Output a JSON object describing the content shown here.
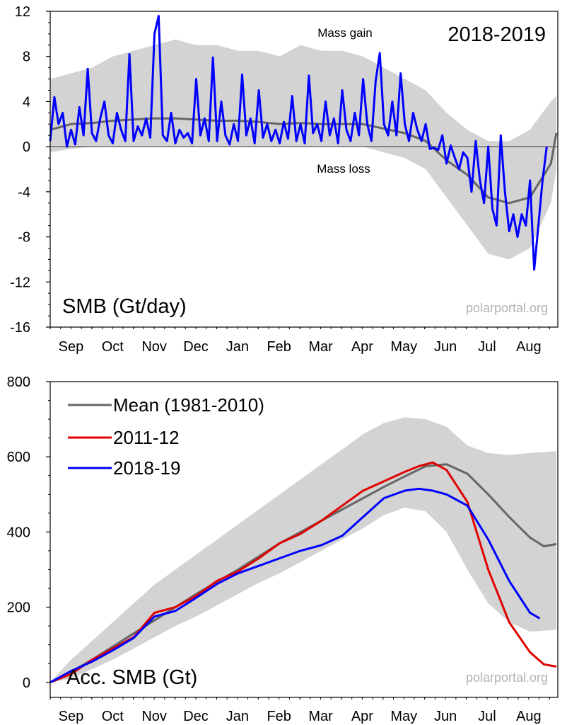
{
  "colors": {
    "mean": "#666666",
    "band": "#d3d3d3",
    "season": "#0000ff",
    "year2012": "#e00000"
  },
  "months": [
    "Sep",
    "Oct",
    "Nov",
    "Dec",
    "Jan",
    "Feb",
    "Mar",
    "Apr",
    "May",
    "Jun",
    "Jul",
    "Aug"
  ],
  "chart_data": [
    {
      "type": "line",
      "title": "2018-2019",
      "ylabel": "SMB (Gt/day)",
      "watermark": "polarportal.org",
      "annotations": {
        "gain": "Mass gain",
        "loss": "Mass loss"
      },
      "ylim": [
        -16,
        12
      ],
      "yticks": [
        12,
        8,
        4,
        0,
        -4,
        -8,
        -12,
        -16
      ],
      "xlim": [
        0,
        365
      ],
      "zero_line": true,
      "grid": false,
      "series": [
        {
          "name": "Mean (1981-2010)",
          "x": [
            0,
            15,
            30,
            45,
            60,
            75,
            90,
            105,
            120,
            135,
            150,
            165,
            180,
            195,
            210,
            225,
            240,
            255,
            270,
            285,
            300,
            315,
            330,
            345,
            360,
            364
          ],
          "y": [
            1.5,
            2.0,
            2.1,
            2.3,
            2.4,
            2.5,
            2.5,
            2.4,
            2.3,
            2.3,
            2.2,
            2.0,
            2.1,
            2.0,
            2.0,
            2.0,
            1.6,
            1.2,
            0.5,
            -1.2,
            -2.5,
            -4.5,
            -5.0,
            -4.5,
            -1.5,
            1.2
          ]
        },
        {
          "name": "2018-19",
          "x": [
            0,
            3,
            6,
            9,
            12,
            15,
            18,
            21,
            24,
            27,
            30,
            33,
            36,
            39,
            42,
            45,
            48,
            51,
            54,
            57,
            60,
            63,
            66,
            69,
            72,
            75,
            78,
            81,
            84,
            87,
            90,
            93,
            96,
            99,
            102,
            105,
            108,
            111,
            114,
            117,
            120,
            123,
            126,
            129,
            132,
            135,
            138,
            141,
            144,
            147,
            150,
            153,
            156,
            159,
            162,
            165,
            168,
            171,
            174,
            177,
            180,
            183,
            186,
            189,
            192,
            195,
            198,
            201,
            204,
            207,
            210,
            213,
            216,
            219,
            222,
            225,
            228,
            231,
            234,
            237,
            240,
            243,
            246,
            249,
            252,
            255,
            258,
            261,
            264,
            267,
            270,
            273,
            276,
            279,
            282,
            285,
            288,
            291,
            294,
            297,
            300,
            303,
            306,
            309,
            312,
            315,
            318,
            321,
            324,
            327,
            330,
            333,
            336,
            339,
            342,
            345,
            348,
            351,
            354,
            357
          ],
          "y": [
            0.5,
            4.4,
            2.0,
            3.0,
            0.0,
            1.5,
            0.2,
            3.5,
            1.0,
            6.9,
            1.2,
            0.5,
            2.5,
            4.0,
            1.0,
            0.3,
            3.0,
            1.5,
            0.5,
            8.2,
            0.5,
            1.8,
            1.0,
            2.5,
            0.8,
            10.0,
            11.6,
            1.0,
            0.5,
            3.0,
            0.3,
            1.5,
            0.8,
            1.2,
            0.3,
            6.0,
            1.0,
            2.5,
            0.5,
            7.9,
            0.5,
            4.0,
            1.0,
            0.2,
            2.0,
            0.5,
            6.4,
            1.0,
            2.5,
            0.3,
            5.0,
            0.8,
            2.0,
            0.5,
            1.5,
            0.3,
            2.2,
            0.7,
            4.5,
            0.5,
            2.0,
            0.3,
            6.3,
            1.2,
            2.0,
            0.5,
            4.0,
            1.0,
            2.5,
            0.3,
            5.0,
            1.5,
            0.5,
            3.0,
            1.0,
            6.0,
            2.0,
            0.5,
            5.8,
            8.3,
            2.0,
            1.0,
            4.0,
            1.0,
            6.5,
            2.0,
            0.5,
            3.0,
            1.5,
            0.5,
            2.0,
            -0.2,
            -0.1,
            -0.3,
            1.0,
            -1.5,
            0.1,
            -1.0,
            -2.0,
            -0.5,
            -1.0,
            -4.0,
            0.5,
            -3.0,
            -5.0,
            0.0,
            -5.5,
            -7.0,
            1.0,
            -4.0,
            -7.5,
            -6.0,
            -8.0,
            -6.0,
            -7.0,
            -3.0,
            -10.9,
            -7.0,
            -3.0,
            0.0
          ]
        }
      ],
      "band": {
        "x": [
          0,
          15,
          30,
          45,
          60,
          75,
          90,
          105,
          120,
          135,
          150,
          165,
          180,
          195,
          210,
          225,
          240,
          255,
          270,
          285,
          300,
          315,
          330,
          345,
          360,
          364
        ],
        "lower": [
          -0.5,
          -0.2,
          0.0,
          0.0,
          0.0,
          0.0,
          0.0,
          0.0,
          0.0,
          0.0,
          0.0,
          0.0,
          0.0,
          0.0,
          0.0,
          0.0,
          -0.5,
          -1.0,
          -2.0,
          -4.5,
          -7.0,
          -9.5,
          -10.0,
          -9.0,
          -5.0,
          -2.0
        ],
        "upper": [
          6.0,
          6.5,
          7.0,
          8.0,
          8.5,
          9.0,
          9.5,
          9.0,
          9.0,
          8.5,
          8.5,
          8.0,
          9.0,
          8.5,
          8.5,
          8.0,
          7.0,
          6.0,
          5.0,
          3.0,
          1.5,
          0.5,
          0.5,
          1.5,
          4.0,
          4.5
        ]
      }
    },
    {
      "type": "line",
      "ylabel": "Acc. SMB (Gt)",
      "watermark": "polarportal.org",
      "ylim": [
        -40,
        800
      ],
      "yticks": [
        800,
        600,
        400,
        200,
        0
      ],
      "xlim": [
        0,
        365
      ],
      "grid": false,
      "legend": "top-left",
      "series": [
        {
          "name": "Mean (1981-2010)",
          "x": [
            0,
            15,
            30,
            45,
            60,
            75,
            90,
            105,
            120,
            135,
            150,
            165,
            180,
            195,
            210,
            225,
            240,
            255,
            270,
            285,
            300,
            315,
            330,
            345,
            355,
            364
          ],
          "y": [
            0,
            28,
            60,
            95,
            130,
            165,
            200,
            235,
            268,
            300,
            335,
            370,
            400,
            430,
            460,
            490,
            520,
            548,
            575,
            580,
            555,
            500,
            440,
            385,
            362,
            368
          ]
        },
        {
          "name": "2011-12",
          "x": [
            0,
            15,
            30,
            45,
            60,
            75,
            90,
            105,
            120,
            135,
            150,
            165,
            180,
            195,
            210,
            225,
            240,
            255,
            265,
            275,
            285,
            300,
            315,
            330,
            345,
            355,
            364
          ],
          "y": [
            0,
            22,
            60,
            90,
            120,
            185,
            200,
            230,
            270,
            295,
            330,
            370,
            395,
            430,
            470,
            510,
            535,
            560,
            575,
            585,
            565,
            480,
            300,
            160,
            80,
            48,
            42
          ]
        },
        {
          "name": "2018-19",
          "x": [
            0,
            15,
            30,
            45,
            60,
            75,
            90,
            105,
            120,
            135,
            150,
            165,
            180,
            195,
            210,
            225,
            240,
            255,
            265,
            275,
            285,
            300,
            315,
            330,
            345,
            352
          ],
          "y": [
            0,
            30,
            55,
            85,
            118,
            175,
            190,
            225,
            262,
            290,
            310,
            330,
            350,
            365,
            390,
            440,
            490,
            510,
            515,
            510,
            500,
            470,
            380,
            270,
            185,
            170
          ]
        }
      ],
      "band": {
        "x": [
          0,
          15,
          30,
          45,
          60,
          75,
          90,
          105,
          120,
          135,
          150,
          165,
          180,
          195,
          210,
          225,
          240,
          255,
          270,
          285,
          300,
          315,
          330,
          345,
          364
        ],
        "lower": [
          0,
          10,
          35,
          60,
          90,
          120,
          150,
          175,
          205,
          235,
          265,
          290,
          320,
          350,
          380,
          410,
          445,
          465,
          455,
          400,
          300,
          210,
          160,
          135,
          140
        ],
        "upper": [
          0,
          60,
          110,
          160,
          210,
          260,
          300,
          340,
          380,
          420,
          460,
          500,
          540,
          580,
          620,
          660,
          690,
          705,
          700,
          680,
          630,
          610,
          605,
          610,
          615
        ]
      }
    }
  ]
}
